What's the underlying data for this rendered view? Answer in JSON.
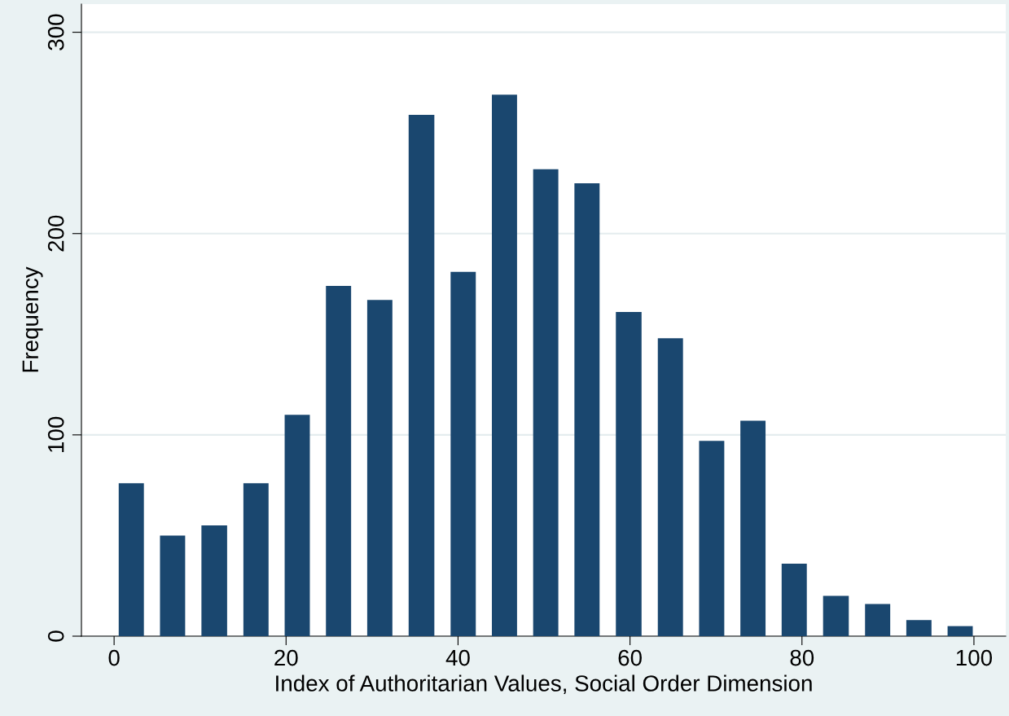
{
  "chart_data": {
    "type": "histogram",
    "xlabel": "Index of Authoritarian Values, Social Order Dimension",
    "ylabel": "Frequency",
    "bins": [
      -0.4,
      4.4,
      9.2,
      14.1,
      18.9,
      23.7,
      28.5,
      33.3,
      38.2,
      43.0,
      47.8,
      52.6,
      57.4,
      62.3,
      67.1,
      71.9,
      76.7,
      81.5,
      86.4,
      91.2,
      96.0,
      100.8
    ],
    "values": [
      76,
      50,
      55,
      76,
      110,
      174,
      167,
      259,
      181,
      269,
      232,
      225,
      161,
      148,
      97,
      107,
      36,
      20,
      16,
      8,
      5
    ],
    "color": "#1a476f",
    "xlim": [
      -3.8,
      103.7
    ],
    "ylim": [
      0,
      314
    ],
    "xticks": [
      0,
      20,
      40,
      60,
      80,
      100
    ],
    "yticks": [
      0,
      100,
      200,
      300
    ],
    "grid": "y"
  }
}
